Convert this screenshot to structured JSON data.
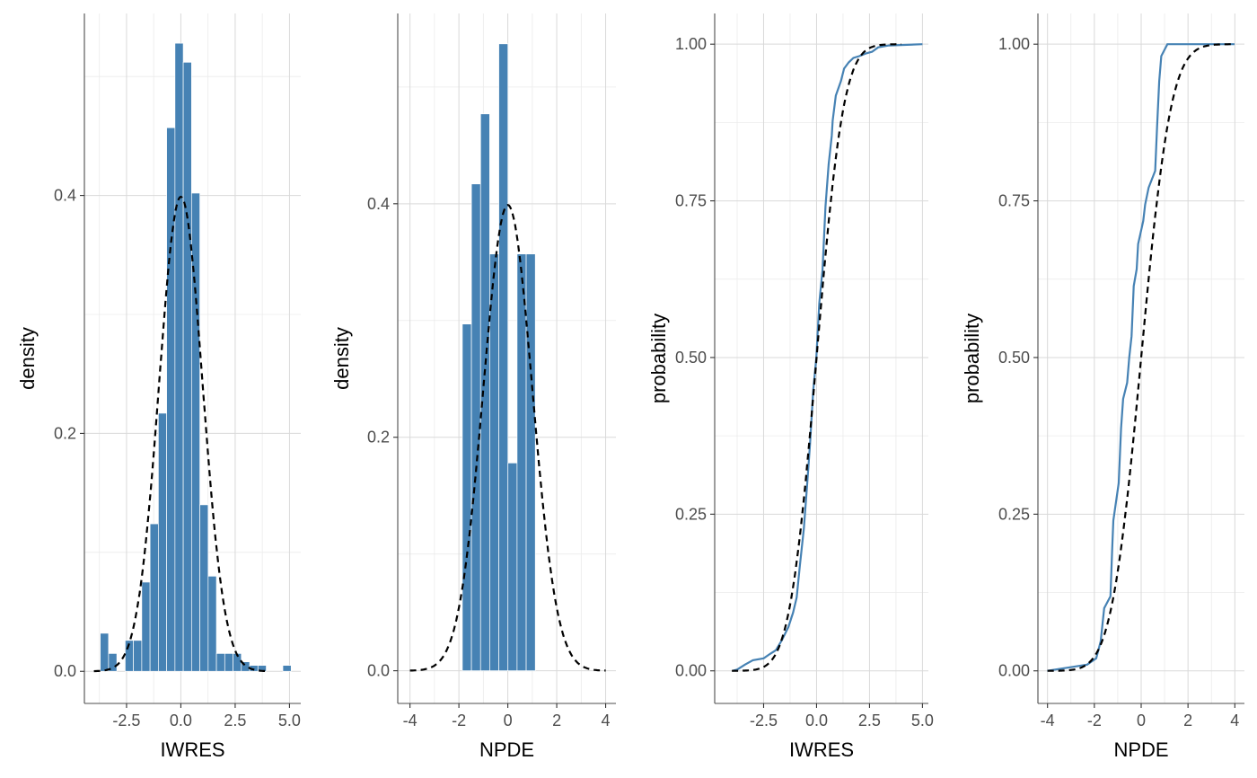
{
  "colors": {
    "bar_fill": "#4682B4",
    "bar_outline": "#FFFFFF",
    "ecdf_line": "#4682B4",
    "reference_line": "#000000",
    "grid": "#D9D9D9",
    "axis": "#4D4D4D"
  },
  "chart_data": [
    {
      "type": "bar",
      "subtype": "histogram",
      "xlabel": "IWRES",
      "ylabel": "density",
      "xlim": [
        -4.44,
        5.52
      ],
      "ylim": [
        -0.027,
        0.553
      ],
      "xticks": [
        -2.5,
        0,
        2.5,
        5
      ],
      "xtick_labels": [
        "-2.5",
        "0.0",
        "2.5",
        "5.0"
      ],
      "yticks": [
        0,
        0.2,
        0.4
      ],
      "ytick_labels": [
        "0.0",
        "0.2",
        "0.4"
      ],
      "grid": true,
      "bin_start": -3.71,
      "bin_width": 0.382,
      "values": [
        0.032,
        0.015,
        0,
        0.026,
        0.026,
        0.075,
        0.124,
        0.217,
        0.457,
        0.528,
        0.512,
        0.402,
        0.14,
        0.08,
        0.015,
        0.015,
        0.015,
        0.008,
        0.005,
        0.005,
        0,
        0,
        0.005
      ],
      "reference": {
        "type": "normal-density",
        "mean": 0,
        "sd": 1,
        "range": [
          -4,
          4
        ],
        "style": "dashed"
      }
    },
    {
      "type": "bar",
      "subtype": "histogram",
      "xlabel": "NPDE",
      "ylabel": "density",
      "xlim": [
        -4.5,
        4.42
      ],
      "ylim": [
        -0.028,
        0.563
      ],
      "xticks": [
        -4,
        -2,
        0,
        2,
        4
      ],
      "xtick_labels": [
        "-4",
        "-2",
        "0",
        "2",
        "4"
      ],
      "yticks": [
        0,
        0.2,
        0.4
      ],
      "ytick_labels": [
        "0.0",
        "0.2",
        "0.4"
      ],
      "grid": true,
      "bin_start": -1.86,
      "bin_width": 0.373,
      "values": [
        0.297,
        0.417,
        0.477,
        0.357,
        0.537,
        0.178,
        0.357,
        0.357
      ],
      "reference": {
        "type": "normal-density",
        "mean": 0,
        "sd": 1,
        "range": [
          -4,
          4
        ],
        "style": "dashed"
      }
    },
    {
      "type": "line",
      "subtype": "ecdf",
      "xlabel": "IWRES",
      "ylabel": "probability",
      "xlim": [
        -4.81,
        5.28
      ],
      "ylim": [
        -0.052,
        1.049
      ],
      "xticks": [
        -2.5,
        0,
        2.5,
        5
      ],
      "xtick_labels": [
        "-2.5",
        "0.0",
        "2.5",
        "5.0"
      ],
      "yticks": [
        0,
        0.25,
        0.5,
        0.75,
        1
      ],
      "ytick_labels": [
        "0.00",
        "0.25",
        "0.50",
        "0.75",
        "1.00"
      ],
      "grid": true,
      "x": [
        -3.96,
        -3.75,
        -3.38,
        -3.01,
        -2.5,
        -2.2,
        -1.92,
        -1.62,
        -1.33,
        -1.11,
        -0.94,
        -0.79,
        -0.6,
        -0.45,
        -0.31,
        -0.16,
        -0.01,
        0.13,
        0.28,
        0.42,
        0.57,
        0.72,
        0.76,
        0.91,
        1.15,
        1.3,
        1.52,
        1.74,
        2.03,
        2.32,
        2.62,
        2.91,
        3.42,
        5.0
      ],
      "y": [
        0,
        0.002,
        0.01,
        0.017,
        0.02,
        0.027,
        0.033,
        0.05,
        0.07,
        0.093,
        0.117,
        0.167,
        0.227,
        0.294,
        0.36,
        0.447,
        0.5,
        0.587,
        0.64,
        0.741,
        0.808,
        0.854,
        0.878,
        0.918,
        0.941,
        0.961,
        0.971,
        0.978,
        0.981,
        0.985,
        0.988,
        0.995,
        0.998,
        1.0
      ],
      "reference": {
        "type": "normal-cdf",
        "mean": 0,
        "sd": 1,
        "range": [
          -4,
          4
        ],
        "style": "dashed"
      }
    },
    {
      "type": "line",
      "subtype": "ecdf",
      "xlabel": "NPDE",
      "ylabel": "probability",
      "xlim": [
        -4.41,
        4.41
      ],
      "ylim": [
        -0.052,
        1.049
      ],
      "xticks": [
        -4,
        -2,
        0,
        2,
        4
      ],
      "xtick_labels": [
        "-4",
        "-2",
        "0",
        "2",
        "4"
      ],
      "yticks": [
        0,
        0.25,
        0.5,
        0.75,
        1
      ],
      "ytick_labels": [
        "0.00",
        "0.25",
        "0.50",
        "0.75",
        "1.00"
      ],
      "grid": true,
      "x": [
        -4.01,
        -2.31,
        -1.92,
        -1.73,
        -1.58,
        -1.31,
        -1.24,
        -1.19,
        -0.96,
        -0.86,
        -0.77,
        -0.6,
        -0.51,
        -0.41,
        -0.32,
        -0.19,
        -0.13,
        0.09,
        0.17,
        0.32,
        0.6,
        0.68,
        0.77,
        0.86,
        1.12,
        3.99
      ],
      "y": [
        0,
        0.01,
        0.02,
        0.047,
        0.1,
        0.119,
        0.194,
        0.24,
        0.3,
        0.387,
        0.434,
        0.46,
        0.5,
        0.534,
        0.614,
        0.641,
        0.681,
        0.718,
        0.744,
        0.771,
        0.798,
        0.868,
        0.941,
        0.981,
        1.0,
        1.0
      ],
      "reference": {
        "type": "normal-cdf",
        "mean": 0,
        "sd": 1,
        "range": [
          -4,
          4
        ],
        "style": "dashed"
      }
    }
  ]
}
